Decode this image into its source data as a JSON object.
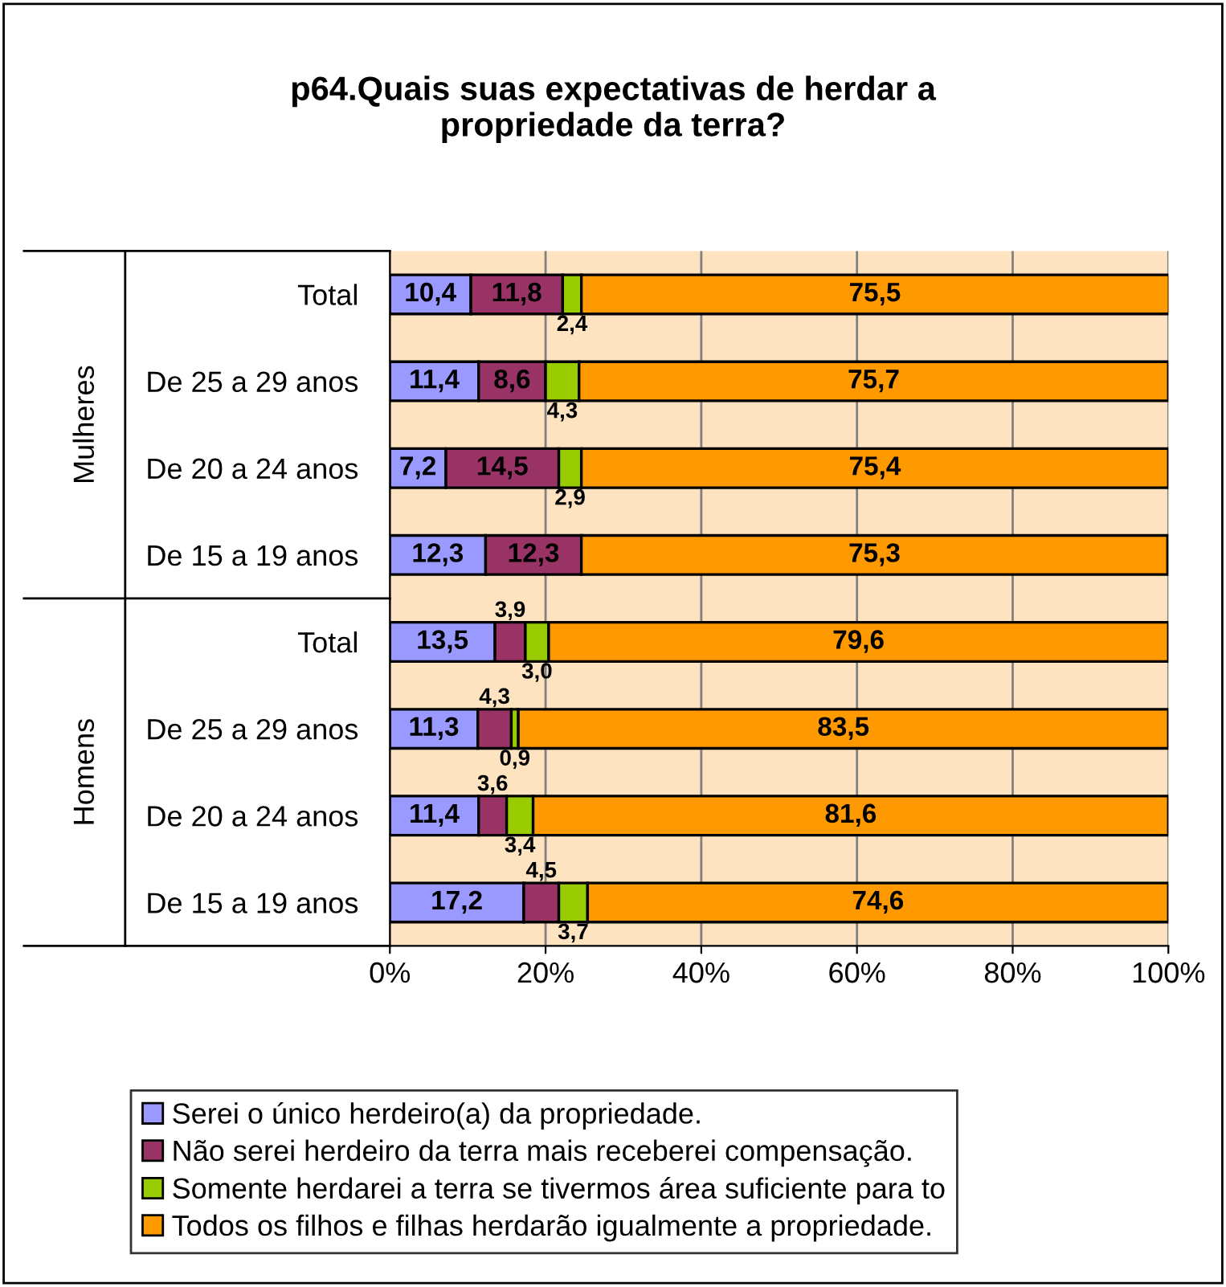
{
  "chart_data": {
    "type": "bar",
    "orientation": "horizontal",
    "stacked": true,
    "title": "p64.Quais suas expectativas de herdar a\npropriedade da terra?",
    "categories": [
      "Total",
      "De 25 a 29 anos",
      "De 20 a 24 anos",
      "De 15 a 19 anos",
      "Total",
      "De 25 a 29 anos",
      "De 20 a 24 anos",
      "De 15 a 19 anos"
    ],
    "annotations": [
      "Mulheres",
      "Homens"
    ],
    "series": [
      {
        "name": "Serei o único herdeiro(a) da propriedade.",
        "color": "#9999ff",
        "values": [
          10.4,
          11.4,
          7.2,
          12.3,
          13.5,
          11.3,
          11.4,
          17.2
        ],
        "value_labels": [
          "10,4",
          "11,4",
          "7,2",
          "12,3",
          "13,5",
          "11,3",
          "11,4",
          "17,2"
        ]
      },
      {
        "name": "Não serei herdeiro da terra mais receberei compensação.",
        "color": "#993366",
        "values": [
          11.8,
          8.6,
          14.5,
          12.3,
          3.9,
          4.3,
          3.6,
          4.5
        ],
        "value_labels": [
          "11,8",
          "8,6",
          "14,5",
          "12,3",
          "3,9",
          "4,3",
          "3,6",
          "4,5"
        ]
      },
      {
        "name": "Somente herdarei a terra se tivermos área suficiente para to",
        "color": "#99cc00",
        "values": [
          2.4,
          4.3,
          2.9,
          null,
          3.0,
          0.9,
          3.4,
          3.7
        ],
        "value_labels": [
          "2,4",
          "4,3",
          "2,9",
          null,
          "3,0",
          "0,9",
          "3,4",
          "3,7"
        ]
      },
      {
        "name": "Todos os filhos e filhas herdarão igualmente a propriedade.",
        "color": "#ff9900",
        "values": [
          75.5,
          75.7,
          75.4,
          75.3,
          79.6,
          83.5,
          81.6,
          74.6
        ],
        "value_labels": [
          "75,5",
          "75,7",
          "75,4",
          "75,3",
          "79,6",
          "83,5",
          "81,6",
          "74,6"
        ]
      }
    ],
    "xlim": [
      0,
      100
    ],
    "xticks": [
      {
        "value": 0,
        "label": "0%"
      },
      {
        "value": 20,
        "label": "20%"
      },
      {
        "value": 40,
        "label": "40%"
      },
      {
        "value": 60,
        "label": "60%"
      },
      {
        "value": 80,
        "label": "80%"
      },
      {
        "value": 100,
        "label": "100%"
      }
    ],
    "grid": "x",
    "legend": "bottom"
  }
}
